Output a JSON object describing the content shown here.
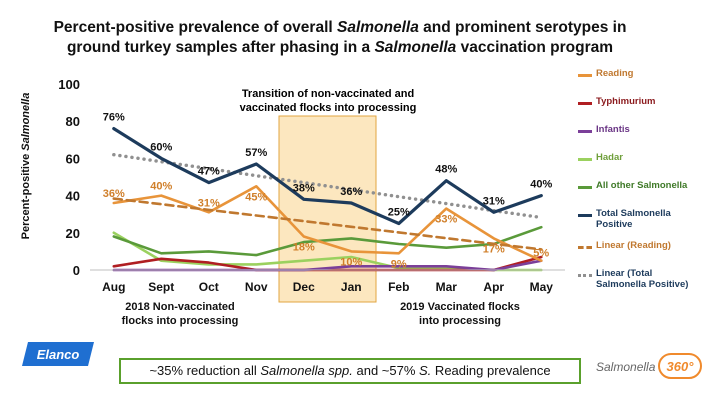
{
  "title": {
    "line1_a": "Percent-positive prevalence of overall ",
    "line1_b": "Salmonella",
    "line1_c": " and prominent serotypes in",
    "line2_a": "ground turkey samples after phasing in a ",
    "line2_b": "Salmonella",
    "line2_c": " vaccination program"
  },
  "ylabel": {
    "a": "Percent-positive ",
    "b": "Salmonella"
  },
  "annotation": {
    "line1": "Transition of non-vaccinated and",
    "line2": "vaccinated flocks into processing"
  },
  "footnotes": {
    "left_line1": "2018 Non-vaccinated",
    "left_line2": "flocks into processing",
    "right_line1": "2019 Vaccinated flocks",
    "right_line2": "into processing"
  },
  "banner": {
    "a": "~35% reduction all ",
    "b": "Salmonella spp.",
    "c": " and ~57% ",
    "d": "S.",
    "e": " Reading prevalence"
  },
  "logos": {
    "elanco": "Elanco",
    "salmonella": "Salmonella",
    "badge": "360°"
  },
  "chart_data": {
    "type": "line",
    "categories": [
      "Aug",
      "Sept",
      "Oct",
      "Nov",
      "Dec",
      "Jan",
      "Feb",
      "Mar",
      "Apr",
      "May"
    ],
    "ylim": [
      0,
      100
    ],
    "yticks": [
      0,
      20,
      40,
      60,
      80,
      100
    ],
    "highlight_categories": [
      "Dec",
      "Jan"
    ],
    "highlight_color": "#fbe3b4",
    "legend_position": "right",
    "series": [
      {
        "name": "Reading",
        "color": "#e8943a",
        "style": "solid",
        "values": [
          36,
          40,
          31,
          45,
          18,
          10,
          9,
          33,
          17,
          5
        ],
        "labels": [
          "36%",
          "40%",
          "31%",
          "45%",
          "18%",
          "10%",
          "9%",
          "33%",
          "17%",
          "5%"
        ]
      },
      {
        "name": "Typhimurium",
        "color": "#b01e22",
        "style": "solid",
        "values": [
          2,
          6,
          4,
          0,
          0,
          0,
          0,
          0,
          0,
          7
        ]
      },
      {
        "name": "Infantis",
        "color": "#7b3f99",
        "style": "solid",
        "values": [
          0,
          0,
          0,
          0,
          0,
          2,
          2,
          2,
          0,
          5
        ]
      },
      {
        "name": "Hadar",
        "color": "#9bd15f",
        "style": "solid",
        "values": [
          20,
          5,
          3,
          3,
          5,
          7,
          1,
          1,
          0,
          0
        ]
      },
      {
        "name": "All other Salmonella",
        "color": "#5a9a3a",
        "style": "solid",
        "values": [
          18,
          9,
          10,
          8,
          15,
          17,
          14,
          12,
          14,
          23
        ]
      },
      {
        "name": "Total Salmonella Positive",
        "color": "#1d3b5c",
        "style": "solid",
        "values": [
          76,
          60,
          47,
          57,
          38,
          36,
          25,
          48,
          31,
          40
        ],
        "labels": [
          "76%",
          "60%",
          "47%",
          "57%",
          "38%",
          "36%",
          "25%",
          "48%",
          "31%",
          "40%"
        ]
      },
      {
        "name": "Linear (Reading)",
        "color": "#c0782f",
        "style": "dashed",
        "values": [
          38.4,
          35.4,
          32.3,
          29.3,
          26.3,
          23.2,
          20.2,
          17.1,
          14.1,
          11.1
        ]
      },
      {
        "name": "Linear (Total Salmonella Positive)",
        "color": "#909090",
        "style": "dotted",
        "values": [
          62,
          58.2,
          54.5,
          50.7,
          47,
          43.2,
          39.4,
          35.7,
          31.9,
          28.2
        ]
      }
    ],
    "legend": [
      {
        "line1": "Reading",
        "line2": ""
      },
      {
        "line1": "Typhimurium",
        "line2": ""
      },
      {
        "line1": "Infantis",
        "line2": ""
      },
      {
        "line1": "Hadar",
        "line2": ""
      },
      {
        "line1": "All other Salmonella",
        "line2": ""
      },
      {
        "line1": "Total Salmonella",
        "line2": "Positive"
      },
      {
        "line1": "Linear (Reading)",
        "line2": ""
      },
      {
        "line1": "Linear (Total",
        "line2": "Salmonella Positive)"
      }
    ]
  }
}
